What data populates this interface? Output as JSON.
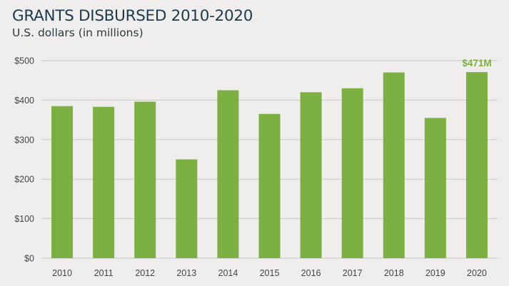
{
  "header": {
    "title": "GRANTS DISBURSED 2010-2020",
    "subtitle": "U.S. dollars (in millions)"
  },
  "colors": {
    "bar": "#7cb043",
    "grid": "#c9c8c7",
    "label_accent": "#7cb043",
    "background": "#efeeed"
  },
  "chart_data": {
    "type": "bar",
    "title": "GRANTS DISBURSED 2010-2020",
    "subtitle": "U.S. dollars (in millions)",
    "xlabel": "",
    "ylabel": "",
    "categories": [
      "2010",
      "2011",
      "2012",
      "2013",
      "2014",
      "2015",
      "2016",
      "2017",
      "2018",
      "2019",
      "2020"
    ],
    "values": [
      385,
      383,
      396,
      250,
      425,
      365,
      420,
      430,
      470,
      355,
      471
    ],
    "ylim": [
      0,
      500
    ],
    "yticks": [
      0,
      100,
      200,
      300,
      400,
      500
    ],
    "ytick_labels": [
      "$0",
      "$100",
      "$200",
      "$300",
      "$400",
      "$500"
    ],
    "grid": true,
    "legend": "none",
    "annotations": [
      {
        "category": "2020",
        "text": "$471M"
      }
    ]
  }
}
